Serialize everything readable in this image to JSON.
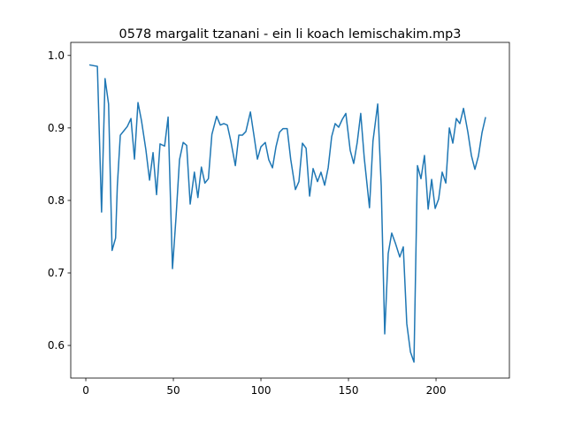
{
  "chart_data": {
    "type": "line",
    "title": "0578 margalit tzanani - ein li koach lemischakim.mp3",
    "color": "#1f77b4",
    "x": [
      2,
      6.6,
      9,
      11,
      13,
      15,
      17,
      18,
      19.7,
      21.7,
      23.7,
      25.8,
      27.8,
      29.8,
      31.8,
      34.3,
      36.4,
      38.4,
      40.4,
      42.4,
      45,
      47,
      49.5,
      51.5,
      53.5,
      55.6,
      57.6,
      59.6,
      62,
      64,
      66,
      68,
      70,
      72,
      74.7,
      76.8,
      78.8,
      80.8,
      82.8,
      85.4,
      87.4,
      89.4,
      91.4,
      94,
      96,
      98,
      100,
      102.5,
      104.5,
      106.6,
      108.6,
      110.6,
      112.6,
      115,
      117,
      119.7,
      121.7,
      123.7,
      125.8,
      127.8,
      129.8,
      132.3,
      134.3,
      136.4,
      138.4,
      140.4,
      142.4,
      144.4,
      146.5,
      148.5,
      151,
      153,
      155,
      157,
      159,
      162,
      164,
      166.7,
      168.7,
      170.7,
      172.7,
      174.7,
      176.8,
      179.3,
      181.3,
      183.3,
      185.4,
      187.4,
      189.4,
      191.4,
      193.4,
      195.5,
      197.5,
      199.5,
      201.5,
      203.5,
      205.6,
      207.6,
      209.6,
      211.6,
      213.6,
      215.7,
      218.2,
      220.2,
      222.2,
      224.2,
      226.3,
      228.3
    ],
    "values": [
      0.987,
      0.985,
      0.784,
      0.968,
      0.933,
      0.731,
      0.748,
      0.82,
      0.89,
      0.896,
      0.902,
      0.913,
      0.857,
      0.935,
      0.91,
      0.87,
      0.828,
      0.866,
      0.808,
      0.878,
      0.875,
      0.915,
      0.706,
      0.776,
      0.856,
      0.88,
      0.876,
      0.795,
      0.839,
      0.804,
      0.846,
      0.824,
      0.83,
      0.891,
      0.916,
      0.904,
      0.906,
      0.904,
      0.882,
      0.848,
      0.89,
      0.89,
      0.895,
      0.922,
      0.89,
      0.857,
      0.874,
      0.88,
      0.856,
      0.845,
      0.874,
      0.894,
      0.899,
      0.899,
      0.857,
      0.815,
      0.826,
      0.879,
      0.872,
      0.806,
      0.844,
      0.826,
      0.839,
      0.821,
      0.845,
      0.888,
      0.906,
      0.901,
      0.912,
      0.92,
      0.869,
      0.851,
      0.88,
      0.92,
      0.859,
      0.79,
      0.882,
      0.933,
      0.82,
      0.616,
      0.727,
      0.755,
      0.741,
      0.722,
      0.736,
      0.63,
      0.591,
      0.577,
      0.848,
      0.83,
      0.862,
      0.788,
      0.829,
      0.789,
      0.802,
      0.839,
      0.824,
      0.9,
      0.879,
      0.913,
      0.906,
      0.927,
      0.894,
      0.862,
      0.843,
      0.861,
      0.894,
      0.915
    ],
    "xlim": [
      -8.6,
      241.9
    ],
    "ylim": [
      0.555,
      1.018
    ],
    "xticks": [
      0,
      50,
      100,
      150,
      200
    ],
    "yticks": [
      0.6,
      0.7,
      0.8,
      0.9,
      {
        "value": 1,
        "label": "1.0"
      }
    ]
  }
}
